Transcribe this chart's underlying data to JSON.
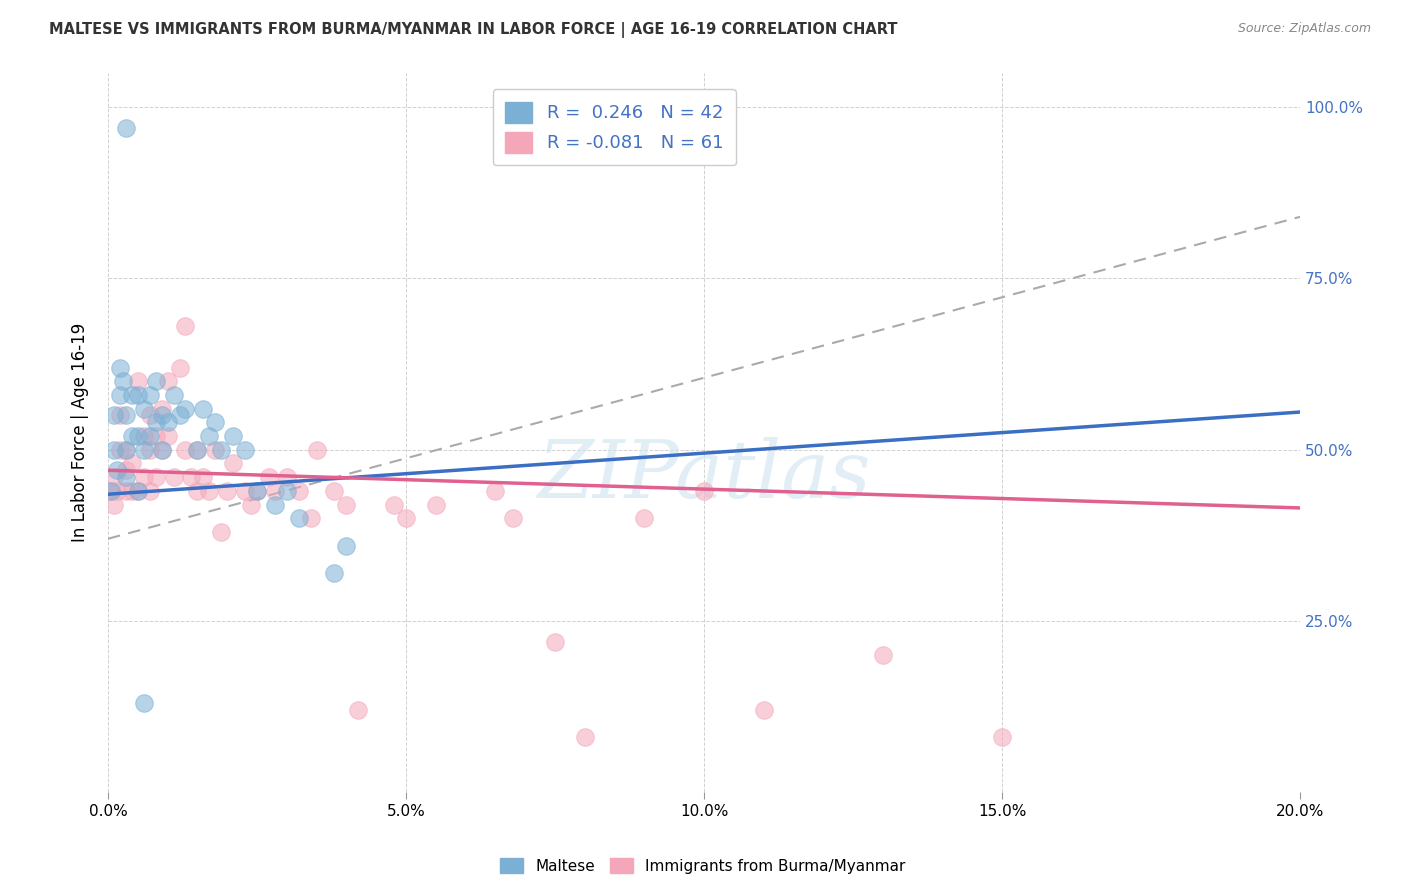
{
  "title": "MALTESE VS IMMIGRANTS FROM BURMA/MYANMAR IN LABOR FORCE | AGE 16-19 CORRELATION CHART",
  "source": "Source: ZipAtlas.com",
  "ylabel": "In Labor Force | Age 16-19",
  "xlim": [
    0.0,
    0.2
  ],
  "ylim": [
    0.0,
    1.05
  ],
  "xtick_labels": [
    "0.0%",
    "5.0%",
    "10.0%",
    "15.0%",
    "20.0%"
  ],
  "xtick_vals": [
    0.0,
    0.05,
    0.1,
    0.15,
    0.2
  ],
  "ytick_labels": [
    "25.0%",
    "50.0%",
    "75.0%",
    "100.0%"
  ],
  "ytick_vals": [
    0.25,
    0.5,
    0.75,
    1.0
  ],
  "blue_color": "#7bafd4",
  "pink_color": "#f4a7b9",
  "blue_legend_label": "R =  0.246   N = 42",
  "pink_legend_label": "R = -0.081   N = 61",
  "watermark": "ZIPatlas",
  "blue_scatter_x": [
    0.0005,
    0.001,
    0.001,
    0.0015,
    0.002,
    0.002,
    0.0025,
    0.003,
    0.003,
    0.003,
    0.004,
    0.004,
    0.005,
    0.005,
    0.005,
    0.006,
    0.006,
    0.007,
    0.007,
    0.008,
    0.008,
    0.009,
    0.009,
    0.01,
    0.011,
    0.012,
    0.013,
    0.015,
    0.016,
    0.017,
    0.018,
    0.019,
    0.021,
    0.023,
    0.025,
    0.028,
    0.03,
    0.032,
    0.038,
    0.04,
    0.003,
    0.006
  ],
  "blue_scatter_y": [
    0.44,
    0.5,
    0.55,
    0.47,
    0.58,
    0.62,
    0.6,
    0.46,
    0.5,
    0.55,
    0.52,
    0.58,
    0.44,
    0.52,
    0.58,
    0.5,
    0.56,
    0.52,
    0.58,
    0.54,
    0.6,
    0.5,
    0.55,
    0.54,
    0.58,
    0.55,
    0.56,
    0.5,
    0.56,
    0.52,
    0.54,
    0.5,
    0.52,
    0.5,
    0.44,
    0.42,
    0.44,
    0.4,
    0.32,
    0.36,
    0.97,
    0.13
  ],
  "pink_scatter_x": [
    0.0005,
    0.001,
    0.001,
    0.0015,
    0.002,
    0.002,
    0.003,
    0.003,
    0.003,
    0.004,
    0.004,
    0.005,
    0.005,
    0.006,
    0.006,
    0.007,
    0.007,
    0.007,
    0.008,
    0.008,
    0.009,
    0.009,
    0.01,
    0.01,
    0.011,
    0.012,
    0.013,
    0.013,
    0.014,
    0.015,
    0.015,
    0.016,
    0.017,
    0.018,
    0.019,
    0.02,
    0.021,
    0.023,
    0.024,
    0.025,
    0.027,
    0.028,
    0.03,
    0.032,
    0.034,
    0.035,
    0.038,
    0.04,
    0.042,
    0.048,
    0.05,
    0.055,
    0.065,
    0.068,
    0.075,
    0.08,
    0.09,
    0.1,
    0.11,
    0.13,
    0.15
  ],
  "pink_scatter_y": [
    0.44,
    0.42,
    0.46,
    0.44,
    0.5,
    0.55,
    0.44,
    0.47,
    0.5,
    0.44,
    0.48,
    0.44,
    0.6,
    0.46,
    0.52,
    0.44,
    0.5,
    0.55,
    0.46,
    0.52,
    0.5,
    0.56,
    0.52,
    0.6,
    0.46,
    0.62,
    0.68,
    0.5,
    0.46,
    0.44,
    0.5,
    0.46,
    0.44,
    0.5,
    0.38,
    0.44,
    0.48,
    0.44,
    0.42,
    0.44,
    0.46,
    0.44,
    0.46,
    0.44,
    0.4,
    0.5,
    0.44,
    0.42,
    0.12,
    0.42,
    0.4,
    0.42,
    0.44,
    0.4,
    0.22,
    0.08,
    0.4,
    0.44,
    0.12,
    0.2,
    0.08
  ],
  "blue_trend_x": [
    0.0,
    0.2
  ],
  "blue_trend_y": [
    0.435,
    0.555
  ],
  "pink_trend_x": [
    0.0,
    0.2
  ],
  "pink_trend_y": [
    0.47,
    0.415
  ],
  "dash_trend_x": [
    0.0,
    0.2
  ],
  "dash_trend_y": [
    0.37,
    0.84
  ]
}
